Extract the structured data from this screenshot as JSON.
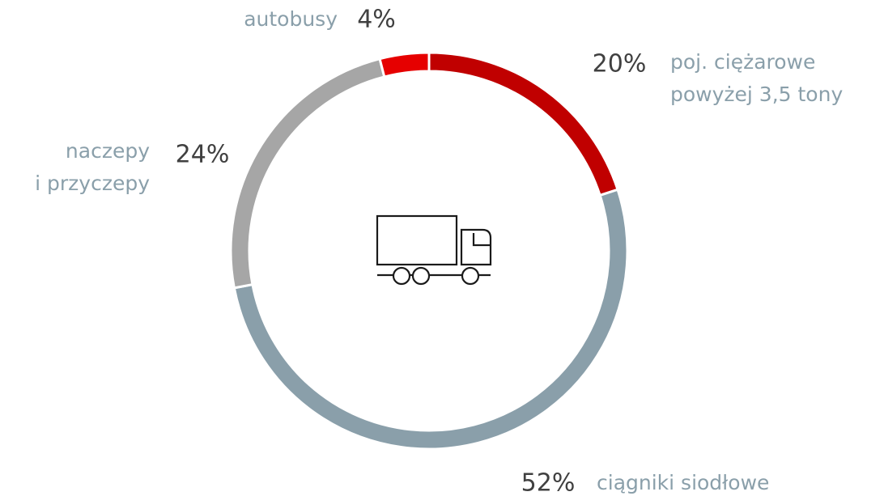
{
  "chart_data": {
    "type": "donut",
    "categories": [
      [
        "poj. ciężarowe",
        "powyżej 3,5 tony"
      ],
      [
        "ciągniki siodłowe"
      ],
      [
        "naczepy",
        "i przyczepy"
      ],
      [
        "autobusy"
      ]
    ],
    "values": [
      20,
      52,
      24,
      4
    ],
    "value_labels": [
      "20%",
      "52%",
      "24%",
      "4%"
    ],
    "colors": [
      "#c00000",
      "#8a9faa",
      "#a6a6a6",
      "#e60000"
    ]
  }
}
